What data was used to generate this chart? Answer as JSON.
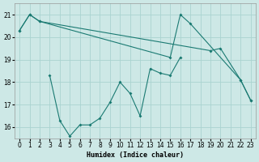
{
  "xlabel": "Humidex (Indice chaleur)",
  "background_color": "#cde8e6",
  "grid_color": "#aad3d0",
  "line_color": "#1a7a72",
  "x": [
    0,
    1,
    2,
    3,
    4,
    5,
    6,
    7,
    8,
    9,
    10,
    11,
    12,
    13,
    14,
    15,
    16,
    17,
    18,
    19,
    20,
    21,
    22,
    23
  ],
  "series1": [
    20.3,
    21.0,
    20.7,
    null,
    null,
    null,
    null,
    null,
    null,
    null,
    null,
    null,
    null,
    null,
    null,
    null,
    null,
    null,
    null,
    19.4,
    19.5,
    null,
    18.1,
    17.2
  ],
  "series2": [
    20.3,
    21.0,
    20.7,
    null,
    null,
    null,
    null,
    null,
    null,
    null,
    null,
    null,
    null,
    null,
    null,
    19.1,
    21.0,
    20.6,
    null,
    null,
    null,
    null,
    18.1,
    17.2
  ],
  "series3": [
    null,
    null,
    null,
    18.3,
    16.3,
    15.6,
    16.1,
    16.1,
    16.4,
    17.1,
    18.0,
    17.5,
    16.5,
    18.6,
    18.4,
    18.3,
    19.1,
    null,
    null,
    null,
    null,
    null,
    null,
    null
  ],
  "ylim": [
    15.5,
    21.5
  ],
  "xlim": [
    -0.5,
    23.5
  ],
  "yticks": [
    16,
    17,
    18,
    19,
    20,
    21
  ],
  "xticks": [
    0,
    1,
    2,
    3,
    4,
    5,
    6,
    7,
    8,
    9,
    10,
    11,
    12,
    13,
    14,
    15,
    16,
    17,
    18,
    19,
    20,
    21,
    22,
    23
  ],
  "figsize": [
    3.2,
    2.0
  ],
  "dpi": 100
}
